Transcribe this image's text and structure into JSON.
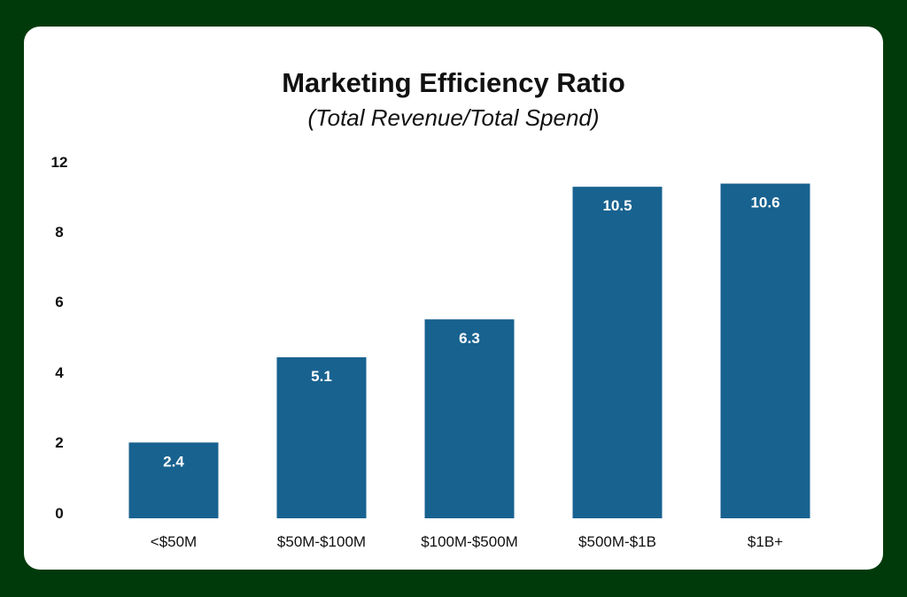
{
  "chart_data": {
    "type": "bar",
    "title": "Marketing Efficiency Ratio",
    "subtitle": "(Total Revenue/Total Spend)",
    "categories": [
      "<$50M",
      "$50M-$100M",
      "$100M-$500M",
      "$500M-$1B",
      "$1B+"
    ],
    "values": [
      2.4,
      5.1,
      6.3,
      10.5,
      10.6
    ],
    "data_labels": [
      "2.4",
      "5.1",
      "6.3",
      "10.5",
      "10.6"
    ],
    "y_ticks": [
      "0",
      "2",
      "4",
      "6",
      "8",
      "12"
    ],
    "xlabel": "",
    "ylabel": "",
    "grid": false,
    "legend": "none"
  },
  "colors": {
    "bar": "#186290",
    "frame": "#003a0b",
    "card": "#ffffff",
    "text": "#111111",
    "data_label": "#ffffff"
  }
}
